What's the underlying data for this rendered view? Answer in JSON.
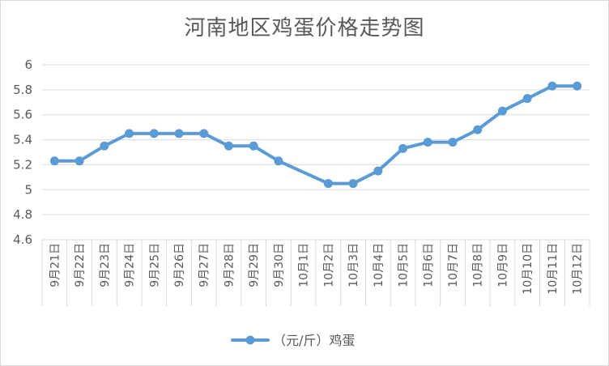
{
  "chart_data": {
    "type": "line",
    "title": "河南地区鸡蛋价格走势图",
    "xlabel": "",
    "ylabel": "",
    "categories": [
      "9月21日",
      "9月22日",
      "9月23日",
      "9月24日",
      "9月25日",
      "9月26日",
      "9月27日",
      "9月28日",
      "9月29日",
      "9月30日",
      "10月1日",
      "10月2日",
      "10月3日",
      "10月4日",
      "10月5日",
      "10月6日",
      "10月7日",
      "10月8日",
      "10月9日",
      "10月10日",
      "10月11日",
      "10月12日"
    ],
    "series": [
      {
        "name": "（元/斤）鸡蛋",
        "values": [
          5.23,
          5.23,
          5.35,
          5.45,
          5.45,
          5.45,
          5.45,
          5.35,
          5.35,
          5.23,
          null,
          5.05,
          5.05,
          5.15,
          5.33,
          5.38,
          5.38,
          5.48,
          5.63,
          5.73,
          5.83,
          5.83
        ],
        "markers": [
          true,
          true,
          true,
          true,
          true,
          true,
          true,
          true,
          true,
          true,
          false,
          true,
          true,
          true,
          true,
          true,
          true,
          true,
          true,
          true,
          true,
          true
        ],
        "color": "#5b9bd5"
      }
    ],
    "ylim": [
      4.6,
      6
    ],
    "yticks": [
      "4.6",
      "4.8",
      "5",
      "5.2",
      "5.4",
      "5.6",
      "5.8",
      "6"
    ],
    "grid": true,
    "legend": "bottom-center",
    "colors": {
      "line": "#5b9bd5",
      "grid": "#d9d9d9",
      "text": "#595959"
    }
  }
}
